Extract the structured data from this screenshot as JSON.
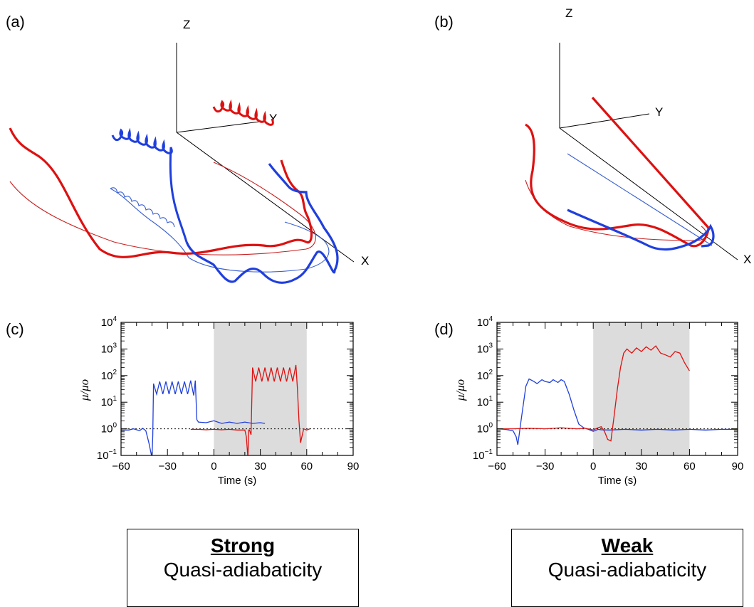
{
  "panels": {
    "a": {
      "label": "(a)",
      "axes": {
        "z": "Z",
        "y": "Y",
        "x": "X"
      }
    },
    "b": {
      "label": "(b)",
      "axes": {
        "z": "Z",
        "y": "Y",
        "x": "X"
      }
    },
    "c": {
      "label": "(c)"
    },
    "d": {
      "label": "(d)"
    }
  },
  "boxes": {
    "left": {
      "title": "Strong",
      "subtitle": "Quasi-adiabaticity"
    },
    "right": {
      "title": "Weak",
      "subtitle": "Quasi-adiabaticity"
    }
  },
  "colors": {
    "red": "#dd1111",
    "blue": "#1f3fdd",
    "shade": "#dcdcdc",
    "blue_thin": "#3a5fd0",
    "red_thin": "#c82020"
  },
  "chart_data": [
    {
      "panel": "c",
      "type": "line",
      "title": "",
      "xlabel": "Time (s)",
      "ylabel": "μ/μo",
      "xlim": [
        -60,
        90
      ],
      "ylim_log10": [
        -1,
        4
      ],
      "x_ticks": [
        -60,
        -30,
        0,
        30,
        60,
        90
      ],
      "y_ticks": [
        "10^-1",
        "10^0",
        "10^1",
        "10^2",
        "10^3",
        "10^4"
      ],
      "shaded_interval": [
        0,
        60
      ],
      "reference_line": 1,
      "series": [
        {
          "color": "blue",
          "x": [
            -60,
            -55,
            -52,
            -48,
            -46,
            -44,
            -42,
            -40,
            -39.5,
            -39,
            -37,
            -35,
            -33,
            -31,
            -29,
            -27,
            -25,
            -23,
            -21,
            -19,
            -17,
            -15,
            -13,
            -12,
            -11,
            -10,
            -5,
            0,
            5,
            10,
            15,
            20,
            25,
            30,
            33
          ],
          "y": [
            0.9,
            0.9,
            1.0,
            0.85,
            1.05,
            0.85,
            0.3,
            0.08,
            0.6,
            50,
            20,
            60,
            20,
            60,
            20,
            60,
            20,
            60,
            20,
            60,
            20,
            65,
            18,
            65,
            2.2,
            1.8,
            1.7,
            2.0,
            1.6,
            1.8,
            1.6,
            1.8,
            1.6,
            1.7,
            1.6
          ]
        },
        {
          "color": "red",
          "x": [
            -15,
            -10,
            -5,
            0,
            5,
            10,
            15,
            20,
            21,
            22,
            22.5,
            23,
            24,
            25,
            27,
            29,
            31,
            33,
            35,
            37,
            39,
            41,
            43,
            45,
            47,
            49,
            51,
            53,
            54,
            55,
            56,
            58,
            60,
            62
          ],
          "y": [
            0.95,
            0.95,
            0.92,
            0.95,
            0.92,
            0.95,
            0.9,
            0.9,
            0.5,
            0.08,
            0.9,
            0.9,
            0.6,
            200,
            60,
            200,
            60,
            200,
            60,
            200,
            60,
            200,
            60,
            200,
            60,
            200,
            60,
            250,
            30,
            2,
            0.3,
            1.0,
            0.9,
            1.0
          ]
        }
      ]
    },
    {
      "panel": "d",
      "type": "line",
      "title": "",
      "xlabel": "Time (s)",
      "ylabel": "μ/μo",
      "xlim": [
        -60,
        90
      ],
      "ylim_log10": [
        -1,
        4
      ],
      "x_ticks": [
        -60,
        -30,
        0,
        30,
        60,
        90
      ],
      "y_ticks": [
        "10^-1",
        "10^0",
        "10^1",
        "10^2",
        "10^3",
        "10^4"
      ],
      "shaded_interval": [
        0,
        60
      ],
      "reference_line": 1,
      "series": [
        {
          "color": "blue",
          "x": [
            -60,
            -55,
            -50,
            -48,
            -47,
            -45,
            -42,
            -40,
            -37,
            -35,
            -32,
            -30,
            -27,
            -25,
            -22,
            -20,
            -18,
            -15,
            -12,
            -9,
            -6,
            -3,
            0,
            3,
            5,
            10,
            20,
            30,
            40,
            50,
            60,
            70,
            80,
            90
          ],
          "y": [
            1.0,
            0.95,
            0.85,
            0.5,
            0.25,
            2,
            40,
            75,
            60,
            50,
            70,
            60,
            55,
            70,
            55,
            70,
            60,
            20,
            5,
            1.5,
            1.1,
            0.95,
            0.8,
            0.95,
            0.92,
            0.9,
            0.95,
            0.9,
            0.95,
            0.9,
            0.95,
            0.9,
            0.95,
            0.95
          ]
        },
        {
          "color": "red",
          "x": [
            -60,
            -50,
            -40,
            -30,
            -20,
            -10,
            -5,
            0,
            3,
            5,
            7,
            9,
            11,
            13,
            15,
            17,
            19,
            21,
            24,
            27,
            30,
            33,
            36,
            39,
            42,
            45,
            48,
            51,
            54,
            57,
            60
          ],
          "y": [
            1.0,
            1.0,
            1.05,
            1.0,
            1.1,
            1.0,
            1.05,
            0.9,
            1.1,
            1.2,
            0.8,
            0.4,
            0.35,
            3,
            30,
            200,
            700,
            1000,
            700,
            1100,
            800,
            1200,
            900,
            1300,
            700,
            600,
            500,
            800,
            700,
            300,
            150
          ]
        }
      ]
    }
  ]
}
